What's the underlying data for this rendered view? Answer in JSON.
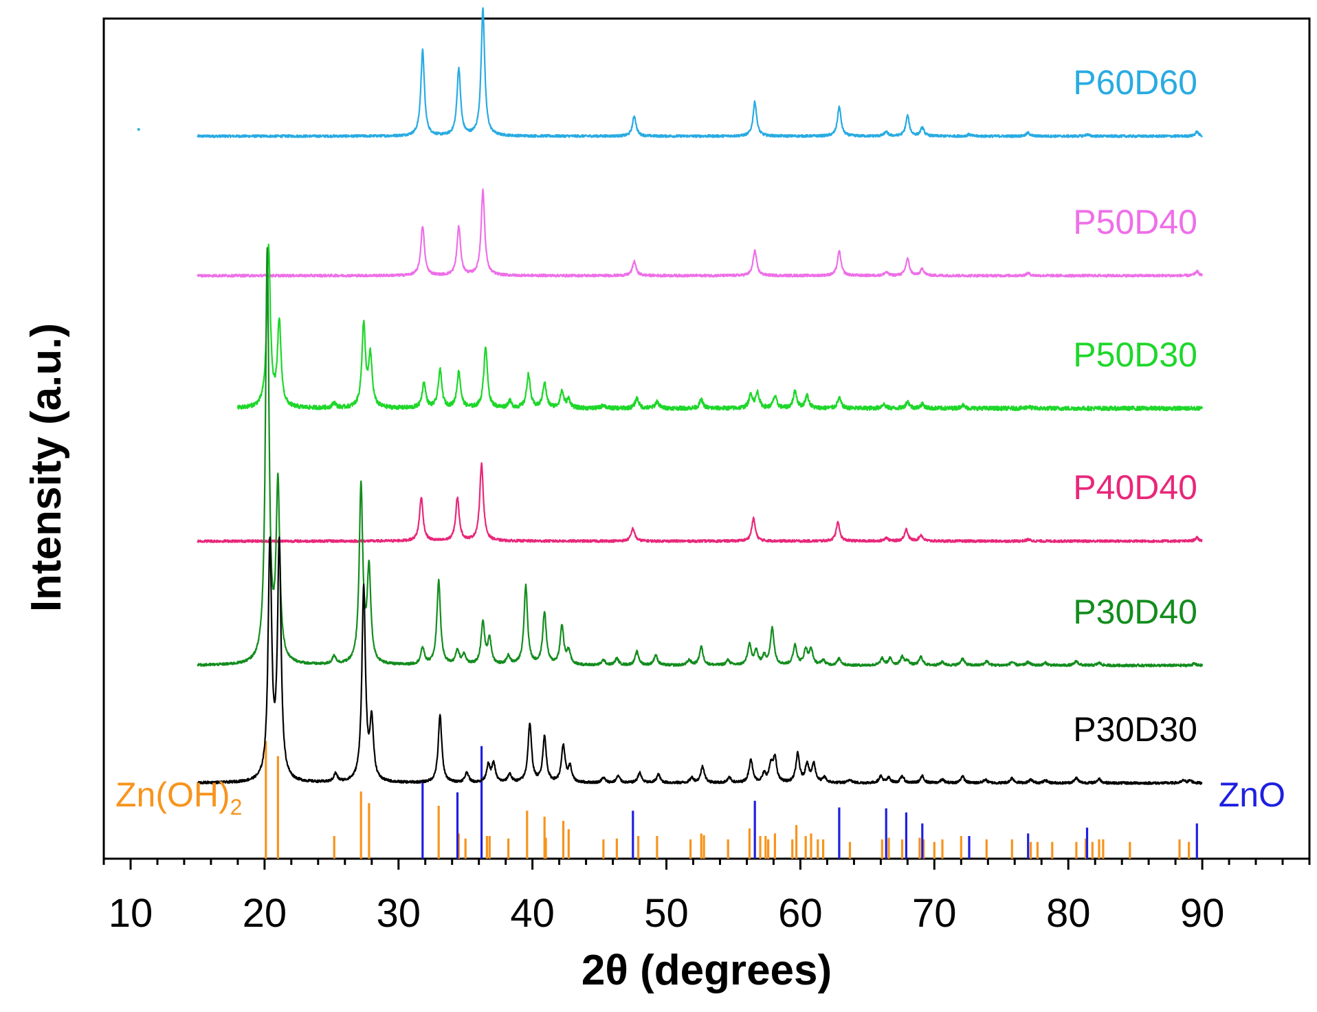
{
  "chart_data": {
    "type": "line",
    "title": "",
    "xlabel": "2θ (degrees)",
    "ylabel": "Intensity (a.u.)",
    "xlim": [
      8,
      98
    ],
    "xticks": [
      10,
      20,
      30,
      40,
      50,
      60,
      70,
      80,
      90
    ],
    "xtick_labels": [
      "10",
      "20",
      "30",
      "40",
      "50",
      "60",
      "70",
      "80",
      "90"
    ],
    "grid": false,
    "legend": "inline labels at right end of each trace",
    "series": [
      {
        "name": "P60D60",
        "color": "#29ABE2",
        "baseline": 0.86,
        "noise": 0.0015,
        "x_start": 15,
        "x_end": 90,
        "peaks": [
          [
            31.8,
            0.102
          ],
          [
            34.5,
            0.08
          ],
          [
            36.3,
            0.151
          ],
          [
            47.6,
            0.024
          ],
          [
            56.6,
            0.041
          ],
          [
            62.9,
            0.035
          ],
          [
            66.4,
            0.005
          ],
          [
            68.0,
            0.024
          ],
          [
            69.1,
            0.01
          ],
          [
            72.6,
            0.002
          ],
          [
            77.0,
            0.004
          ],
          [
            81.4,
            0.002
          ],
          [
            89.6,
            0.005
          ]
        ]
      },
      {
        "name": "P50D40",
        "color": "#EE6FE8",
        "baseline": 0.694,
        "noise": 0.0015,
        "x_start": 15,
        "x_end": 90,
        "peaks": [
          [
            31.8,
            0.059
          ],
          [
            34.5,
            0.058
          ],
          [
            36.3,
            0.101
          ],
          [
            47.6,
            0.017
          ],
          [
            56.6,
            0.03
          ],
          [
            62.9,
            0.029
          ],
          [
            66.4,
            0.004
          ],
          [
            68.0,
            0.02
          ],
          [
            69.1,
            0.008
          ],
          [
            77.0,
            0.003
          ],
          [
            89.6,
            0.005
          ]
        ]
      },
      {
        "name": "P50D30",
        "color": "#1ED72A",
        "baseline": 0.536,
        "noise": 0.0025,
        "x_start": 18,
        "x_end": 90,
        "peaks": [
          [
            20.3,
            0.19
          ],
          [
            21.1,
            0.1
          ],
          [
            25.2,
            0.006
          ],
          [
            27.4,
            0.098
          ],
          [
            27.9,
            0.06
          ],
          [
            31.9,
            0.03
          ],
          [
            33.1,
            0.045
          ],
          [
            34.5,
            0.043
          ],
          [
            36.5,
            0.074
          ],
          [
            38.3,
            0.008
          ],
          [
            39.7,
            0.04
          ],
          [
            40.9,
            0.03
          ],
          [
            42.2,
            0.02
          ],
          [
            42.7,
            0.01
          ],
          [
            45.3,
            0.004
          ],
          [
            47.8,
            0.012
          ],
          [
            49.3,
            0.008
          ],
          [
            52.6,
            0.01
          ],
          [
            56.3,
            0.016
          ],
          [
            56.8,
            0.018
          ],
          [
            58.1,
            0.014
          ],
          [
            59.6,
            0.02
          ],
          [
            60.5,
            0.015
          ],
          [
            62.9,
            0.012
          ],
          [
            66.2,
            0.005
          ],
          [
            68.0,
            0.008
          ],
          [
            69.1,
            0.005
          ],
          [
            72.1,
            0.004
          ],
          [
            77.0,
            0.002
          ]
        ]
      },
      {
        "name": "P40D40",
        "color": "#E8277A",
        "baseline": 0.378,
        "noise": 0.0015,
        "x_start": 15,
        "x_end": 90,
        "peaks": [
          [
            31.7,
            0.052
          ],
          [
            34.4,
            0.051
          ],
          [
            36.2,
            0.092
          ],
          [
            47.5,
            0.015
          ],
          [
            56.5,
            0.027
          ],
          [
            62.8,
            0.022
          ],
          [
            66.4,
            0.004
          ],
          [
            67.9,
            0.014
          ],
          [
            69.0,
            0.007
          ],
          [
            77.0,
            0.002
          ],
          [
            89.6,
            0.004
          ]
        ]
      },
      {
        "name": "P30D40",
        "color": "#138D1E",
        "baseline": 0.23,
        "noise": 0.0015,
        "x_start": 15,
        "x_end": 90,
        "peaks": [
          [
            20.2,
            0.49
          ],
          [
            21.0,
            0.21
          ],
          [
            25.2,
            0.01
          ],
          [
            27.2,
            0.21
          ],
          [
            27.8,
            0.11
          ],
          [
            31.8,
            0.02
          ],
          [
            33.0,
            0.1
          ],
          [
            34.4,
            0.017
          ],
          [
            34.9,
            0.012
          ],
          [
            36.3,
            0.05
          ],
          [
            36.8,
            0.03
          ],
          [
            38.2,
            0.01
          ],
          [
            39.5,
            0.094
          ],
          [
            40.9,
            0.062
          ],
          [
            42.2,
            0.046
          ],
          [
            42.7,
            0.016
          ],
          [
            45.3,
            0.006
          ],
          [
            46.3,
            0.008
          ],
          [
            47.8,
            0.016
          ],
          [
            49.2,
            0.012
          ],
          [
            51.7,
            0.006
          ],
          [
            52.6,
            0.022
          ],
          [
            54.6,
            0.006
          ],
          [
            56.2,
            0.024
          ],
          [
            56.7,
            0.016
          ],
          [
            57.3,
            0.01
          ],
          [
            57.9,
            0.044
          ],
          [
            59.6,
            0.024
          ],
          [
            60.4,
            0.018
          ],
          [
            60.8,
            0.018
          ],
          [
            61.7,
            0.006
          ],
          [
            62.9,
            0.008
          ],
          [
            66.1,
            0.008
          ],
          [
            66.7,
            0.008
          ],
          [
            67.6,
            0.01
          ],
          [
            68.0,
            0.005
          ],
          [
            69.0,
            0.01
          ],
          [
            70.6,
            0.004
          ],
          [
            72.1,
            0.008
          ],
          [
            73.9,
            0.005
          ],
          [
            75.8,
            0.004
          ],
          [
            77.0,
            0.004
          ],
          [
            78.3,
            0.003
          ],
          [
            80.6,
            0.005
          ],
          [
            82.3,
            0.003
          ],
          [
            89.4,
            0.002
          ]
        ]
      },
      {
        "name": "P30D30",
        "color": "#000000",
        "baseline": 0.09,
        "noise": 0.0015,
        "x_start": 15,
        "x_end": 90,
        "peaks": [
          [
            20.4,
            0.28
          ],
          [
            21.1,
            0.28
          ],
          [
            25.3,
            0.01
          ],
          [
            27.4,
            0.23
          ],
          [
            28.0,
            0.07
          ],
          [
            33.1,
            0.08
          ],
          [
            35.1,
            0.012
          ],
          [
            36.7,
            0.02
          ],
          [
            37.1,
            0.022
          ],
          [
            38.3,
            0.01
          ],
          [
            39.8,
            0.07
          ],
          [
            40.9,
            0.054
          ],
          [
            42.3,
            0.044
          ],
          [
            42.8,
            0.018
          ],
          [
            45.3,
            0.006
          ],
          [
            46.4,
            0.008
          ],
          [
            48.0,
            0.012
          ],
          [
            49.4,
            0.01
          ],
          [
            51.9,
            0.006
          ],
          [
            52.7,
            0.02
          ],
          [
            54.7,
            0.006
          ],
          [
            56.3,
            0.028
          ],
          [
            57.3,
            0.01
          ],
          [
            57.8,
            0.02
          ],
          [
            58.1,
            0.028
          ],
          [
            59.8,
            0.034
          ],
          [
            60.5,
            0.022
          ],
          [
            61.0,
            0.022
          ],
          [
            61.8,
            0.006
          ],
          [
            63.7,
            0.004
          ],
          [
            66.0,
            0.008
          ],
          [
            66.6,
            0.006
          ],
          [
            67.6,
            0.008
          ],
          [
            69.1,
            0.008
          ],
          [
            70.6,
            0.004
          ],
          [
            72.1,
            0.008
          ],
          [
            73.8,
            0.004
          ],
          [
            75.8,
            0.006
          ],
          [
            77.2,
            0.004
          ],
          [
            78.3,
            0.003
          ],
          [
            80.6,
            0.006
          ],
          [
            82.3,
            0.005
          ],
          [
            88.6,
            0.003
          ],
          [
            89.1,
            0.003
          ]
        ]
      }
    ],
    "reference_patterns": [
      {
        "name": "Zn(OH)2",
        "label_main": "Zn(OH)",
        "label_sub": "2",
        "color": "#F7941D",
        "lines": [
          [
            20.1,
            0.14
          ],
          [
            21.0,
            0.122
          ],
          [
            25.2,
            0.027
          ],
          [
            27.2,
            0.08
          ],
          [
            27.8,
            0.066
          ],
          [
            33.0,
            0.063
          ],
          [
            34.5,
            0.03
          ],
          [
            35.0,
            0.024
          ],
          [
            36.6,
            0.027
          ],
          [
            36.8,
            0.027
          ],
          [
            38.2,
            0.024
          ],
          [
            39.6,
            0.057
          ],
          [
            40.9,
            0.05
          ],
          [
            41.0,
            0.025
          ],
          [
            42.3,
            0.045
          ],
          [
            42.7,
            0.035
          ],
          [
            45.3,
            0.023
          ],
          [
            46.3,
            0.024
          ],
          [
            47.9,
            0.027
          ],
          [
            49.3,
            0.027
          ],
          [
            51.8,
            0.023
          ],
          [
            52.6,
            0.03
          ],
          [
            52.8,
            0.028
          ],
          [
            54.6,
            0.023
          ],
          [
            56.2,
            0.036
          ],
          [
            57.0,
            0.027
          ],
          [
            57.4,
            0.027
          ],
          [
            57.6,
            0.023
          ],
          [
            58.1,
            0.03
          ],
          [
            59.4,
            0.023
          ],
          [
            59.7,
            0.04
          ],
          [
            60.4,
            0.027
          ],
          [
            60.8,
            0.03
          ],
          [
            61.3,
            0.023
          ],
          [
            61.7,
            0.023
          ],
          [
            63.7,
            0.02
          ],
          [
            66.1,
            0.023
          ],
          [
            66.6,
            0.025
          ],
          [
            67.6,
            0.023
          ],
          [
            68.9,
            0.025
          ],
          [
            69.2,
            0.023
          ],
          [
            70.0,
            0.02
          ],
          [
            70.6,
            0.023
          ],
          [
            72.0,
            0.027
          ],
          [
            73.9,
            0.023
          ],
          [
            75.8,
            0.023
          ],
          [
            77.2,
            0.02
          ],
          [
            77.7,
            0.02
          ],
          [
            78.8,
            0.02
          ],
          [
            80.6,
            0.02
          ],
          [
            81.3,
            0.024
          ],
          [
            81.8,
            0.02
          ],
          [
            82.3,
            0.023
          ],
          [
            82.6,
            0.023
          ],
          [
            84.6,
            0.02
          ],
          [
            88.3,
            0.023
          ],
          [
            89.0,
            0.02
          ]
        ]
      },
      {
        "name": "ZnO",
        "label_main": "ZnO",
        "label_sub": "",
        "color": "#1F1FE0",
        "lines": [
          [
            31.8,
            0.093
          ],
          [
            34.4,
            0.079
          ],
          [
            36.2,
            0.134
          ],
          [
            47.5,
            0.057
          ],
          [
            56.6,
            0.069
          ],
          [
            62.9,
            0.061
          ],
          [
            66.4,
            0.06
          ],
          [
            67.9,
            0.055
          ],
          [
            69.1,
            0.042
          ],
          [
            72.6,
            0.027
          ],
          [
            77.0,
            0.03
          ],
          [
            81.4,
            0.037
          ],
          [
            89.6,
            0.042
          ]
        ]
      }
    ]
  }
}
